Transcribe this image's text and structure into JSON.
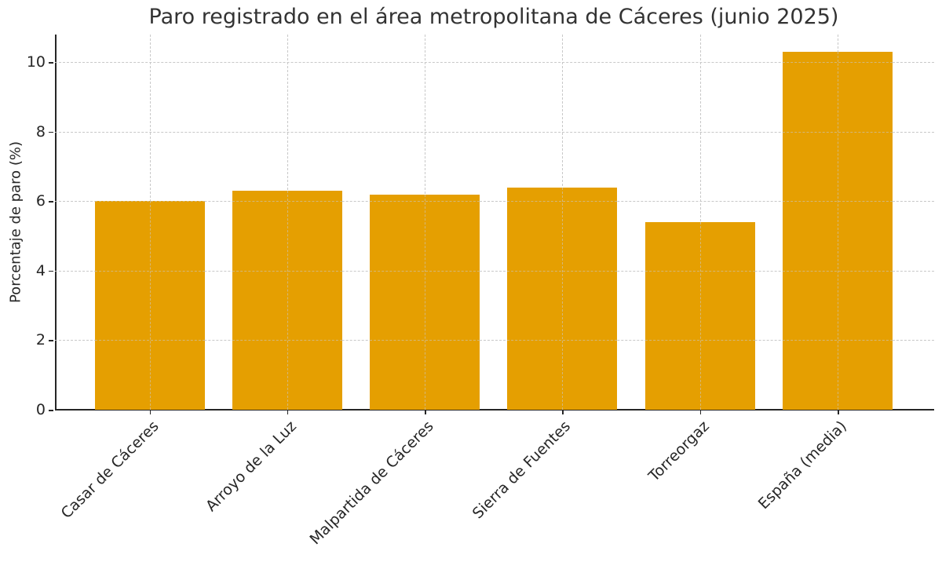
{
  "chart_data": {
    "type": "bar",
    "title": "Paro registrado en el área metropolitana de Cáceres (junio 2025)",
    "xlabel": "",
    "ylabel": "Porcentaje de paro (%)",
    "categories": [
      "Casar de Cáceres",
      "Arroyo de la Luz",
      "Malpartida de Cáceres",
      "Sierra de Fuentes",
      "Torreorgaz",
      "España (media)"
    ],
    "values": [
      6.0,
      6.3,
      6.2,
      6.4,
      5.4,
      10.3
    ],
    "ylim": [
      0,
      10.8
    ],
    "yticks": [
      0,
      2,
      4,
      6,
      8,
      10
    ],
    "grid": true,
    "legend": null,
    "bar_color": "#e59f01"
  }
}
